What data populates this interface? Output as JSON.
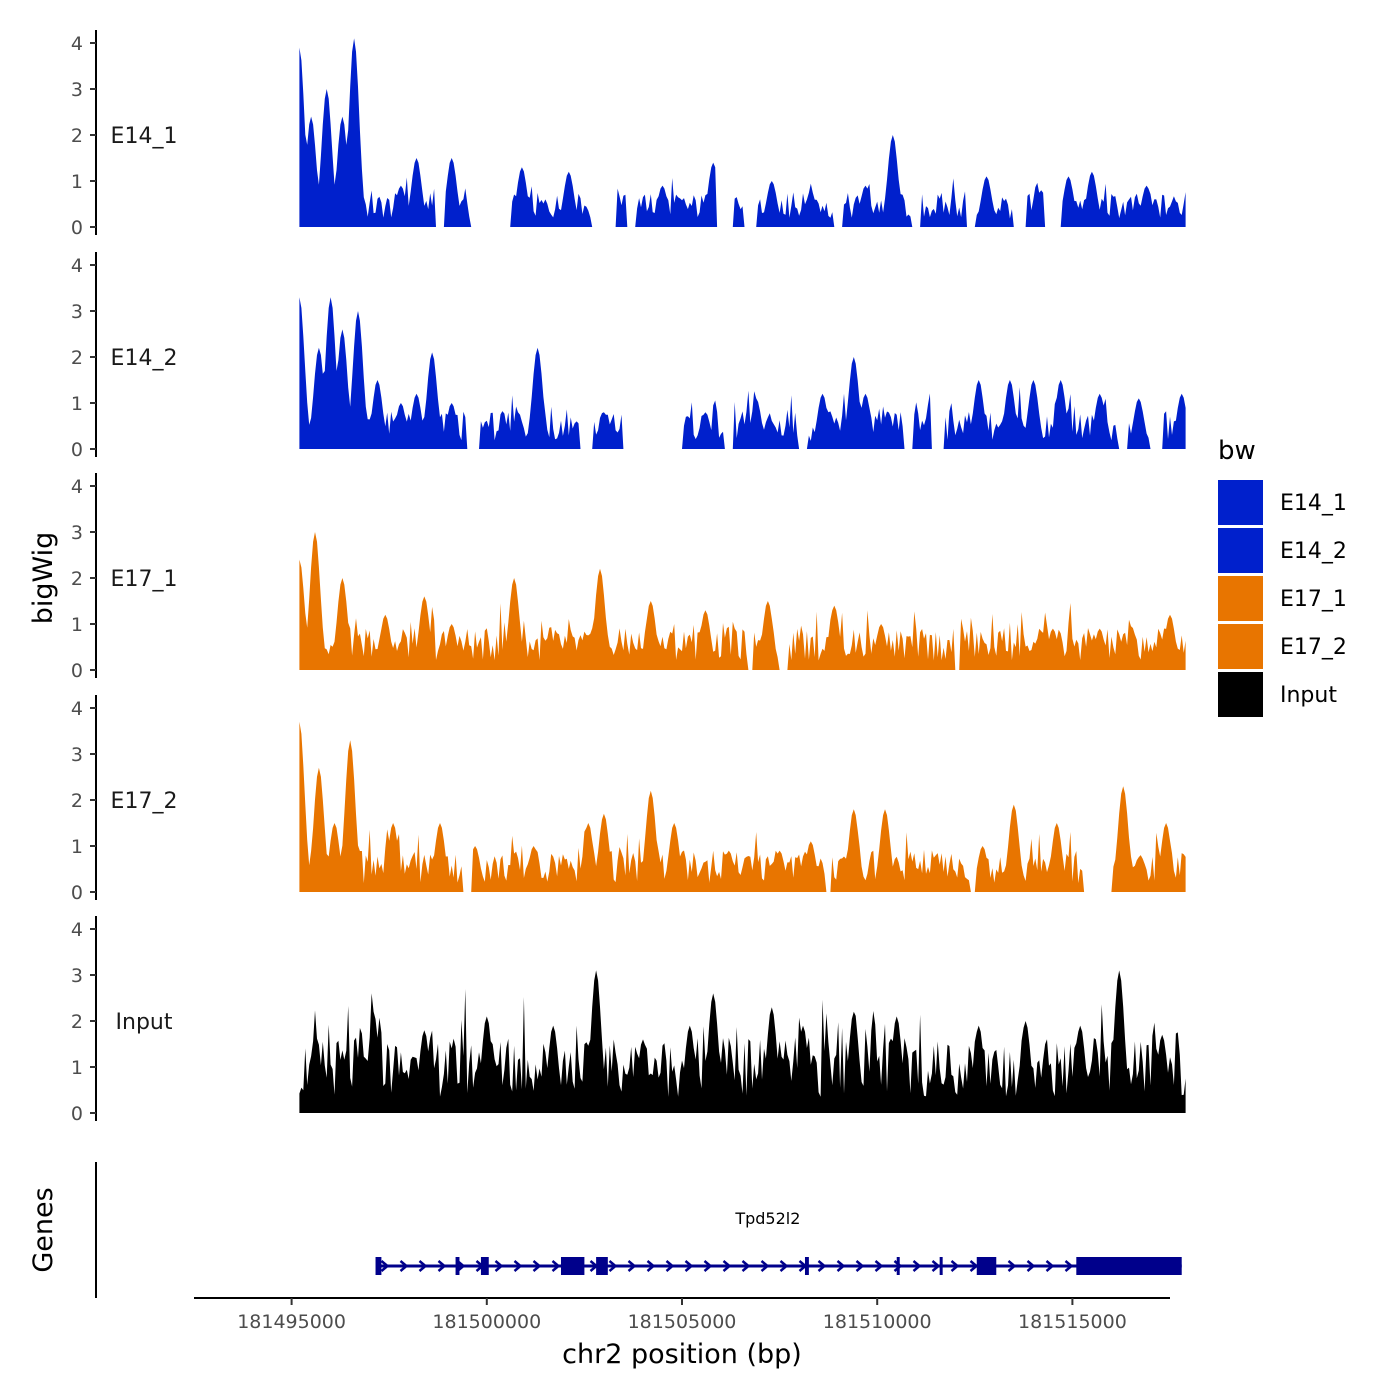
{
  "chart_data": {
    "type": "area",
    "title": "",
    "ylabel": "bigWig",
    "xlabel": "chr2 position (bp)",
    "genes_label": "Genes",
    "xlim": [
      181492500,
      181517500
    ],
    "ylim": [
      0,
      4
    ],
    "yticks": [
      "0",
      "1",
      "2",
      "3",
      "4"
    ],
    "xticks": [
      {
        "value": 181495000,
        "label": "181495000"
      },
      {
        "value": 181500000,
        "label": "181500000"
      },
      {
        "value": 181505000,
        "label": "181505000"
      },
      {
        "value": 181510000,
        "label": "181510000"
      },
      {
        "value": 181515000,
        "label": "181515000"
      }
    ],
    "region": [
      181495200,
      181517900
    ],
    "series": [
      {
        "name": "E14_1",
        "color": "#0020CC",
        "mean": 0.45,
        "peaks": [
          [
            181495200,
            3.9
          ],
          [
            181495500,
            2.4
          ],
          [
            181495900,
            3.0
          ],
          [
            181496300,
            2.4
          ],
          [
            181496600,
            4.1
          ],
          [
            181497800,
            0.9
          ],
          [
            181498200,
            1.5
          ],
          [
            181499100,
            1.5
          ],
          [
            181500900,
            1.3
          ],
          [
            181502100,
            1.2
          ],
          [
            181503300,
            0.9
          ],
          [
            181504500,
            0.9
          ],
          [
            181505800,
            1.4
          ],
          [
            181507300,
            1.0
          ],
          [
            181508300,
            0.8
          ],
          [
            181509700,
            0.9
          ],
          [
            181510400,
            2.0
          ],
          [
            181512800,
            1.1
          ],
          [
            181514200,
            0.8
          ],
          [
            181514900,
            1.1
          ],
          [
            181515500,
            1.2
          ],
          [
            181516900,
            0.9
          ],
          [
            181517600,
            0.6
          ]
        ],
        "gaps": [
          [
            181498700,
            181498900
          ],
          [
            181499600,
            181500600
          ],
          [
            181502700,
            181503300
          ],
          [
            181503600,
            181503800
          ],
          [
            181505900,
            181506300
          ],
          [
            181506600,
            181506900
          ],
          [
            181508900,
            181509100
          ],
          [
            181510900,
            181511100
          ],
          [
            181512300,
            181512500
          ],
          [
            181513500,
            181513800
          ],
          [
            181514300,
            181514700
          ]
        ]
      },
      {
        "name": "E14_2",
        "color": "#0020CC",
        "mean": 0.5,
        "peaks": [
          [
            181495200,
            3.3
          ],
          [
            181495700,
            2.2
          ],
          [
            181496000,
            3.3
          ],
          [
            181496300,
            2.6
          ],
          [
            181496700,
            3.0
          ],
          [
            181497200,
            1.5
          ],
          [
            181497800,
            1.0
          ],
          [
            181498200,
            1.2
          ],
          [
            181498600,
            2.1
          ],
          [
            181499100,
            1.0
          ],
          [
            181500800,
            0.8
          ],
          [
            181501300,
            2.2
          ],
          [
            181502300,
            0.6
          ],
          [
            181503000,
            0.8
          ],
          [
            181504300,
            0.7
          ],
          [
            181505600,
            0.8
          ],
          [
            181506900,
            1.1
          ],
          [
            181508600,
            1.2
          ],
          [
            181509400,
            2.0
          ],
          [
            181509700,
            1.2
          ],
          [
            181511400,
            1.3
          ],
          [
            181512600,
            1.5
          ],
          [
            181513400,
            1.5
          ],
          [
            181514000,
            1.5
          ],
          [
            181514700,
            1.5
          ],
          [
            181515700,
            1.2
          ],
          [
            181516700,
            1.1
          ],
          [
            181517800,
            1.2
          ]
        ],
        "gaps": [
          [
            181499500,
            181499800
          ],
          [
            181502400,
            181502700
          ],
          [
            181503500,
            181505000
          ],
          [
            181506100,
            181506300
          ],
          [
            181508000,
            181508200
          ],
          [
            181510700,
            181510900
          ],
          [
            181511400,
            181511700
          ],
          [
            181516200,
            181516400
          ],
          [
            181517000,
            181517300
          ]
        ]
      },
      {
        "name": "E17_1",
        "color": "#E87500",
        "mean": 0.55,
        "peaks": [
          [
            181495200,
            2.4
          ],
          [
            181495600,
            3.0
          ],
          [
            181496300,
            2.0
          ],
          [
            181497400,
            1.2
          ],
          [
            181498400,
            1.6
          ],
          [
            181499100,
            1.0
          ],
          [
            181500700,
            2.0
          ],
          [
            181502900,
            2.2
          ],
          [
            181504200,
            1.5
          ],
          [
            181505600,
            1.3
          ],
          [
            181507200,
            1.5
          ],
          [
            181508900,
            1.4
          ],
          [
            181510100,
            1.0
          ],
          [
            181512100,
            1.2
          ],
          [
            181514500,
            0.9
          ],
          [
            181515700,
            0.9
          ],
          [
            181517500,
            1.2
          ]
        ],
        "gaps": [
          [
            181506700,
            181506800
          ],
          [
            181507500,
            181507700
          ],
          [
            181512000,
            181512100
          ]
        ]
      },
      {
        "name": "E17_2",
        "color": "#E87500",
        "mean": 0.55,
        "peaks": [
          [
            181495200,
            3.7
          ],
          [
            181495700,
            2.7
          ],
          [
            181496100,
            1.5
          ],
          [
            181496500,
            3.3
          ],
          [
            181497600,
            1.5
          ],
          [
            181498800,
            1.5
          ],
          [
            181499700,
            1.0
          ],
          [
            181501200,
            1.0
          ],
          [
            181502600,
            1.5
          ],
          [
            181503000,
            1.7
          ],
          [
            181504200,
            2.2
          ],
          [
            181504800,
            1.5
          ],
          [
            181506200,
            0.9
          ],
          [
            181507500,
            0.9
          ],
          [
            181508300,
            1.1
          ],
          [
            181509400,
            1.8
          ],
          [
            181510200,
            1.8
          ],
          [
            181511500,
            0.8
          ],
          [
            181512700,
            1.0
          ],
          [
            181513500,
            1.9
          ],
          [
            181514600,
            1.5
          ],
          [
            181516300,
            2.3
          ],
          [
            181517400,
            1.5
          ]
        ],
        "gaps": [
          [
            181499400,
            181499600
          ],
          [
            181508700,
            181508800
          ],
          [
            181512400,
            181512500
          ],
          [
            181515300,
            181516000
          ]
        ]
      },
      {
        "name": "Input",
        "color": "#000000",
        "mean": 1.0,
        "peaks": [
          [
            181495600,
            1.6
          ],
          [
            181497100,
            2.2
          ],
          [
            181498400,
            1.8
          ],
          [
            181500000,
            2.1
          ],
          [
            181501700,
            1.9
          ],
          [
            181502800,
            3.1
          ],
          [
            181504000,
            1.6
          ],
          [
            181505200,
            1.9
          ],
          [
            181505800,
            2.6
          ],
          [
            181507300,
            2.3
          ],
          [
            181508100,
            1.9
          ],
          [
            181509400,
            2.2
          ],
          [
            181510500,
            2.1
          ],
          [
            181512600,
            1.9
          ],
          [
            181513800,
            2.0
          ],
          [
            181515200,
            1.9
          ],
          [
            181516200,
            3.1
          ],
          [
            181517300,
            1.7
          ]
        ],
        "gaps": []
      }
    ],
    "gene": {
      "name": "Tpd52l2",
      "color": "#00008B",
      "start": 181497200,
      "end": 181517800,
      "exons": [
        [
          181497150,
          181497300
        ],
        [
          181499200,
          181499300
        ],
        [
          181499850,
          181500050
        ],
        [
          181501900,
          181502500
        ],
        [
          181502800,
          181503100
        ],
        [
          181508150,
          181508250
        ],
        [
          181510500,
          181510520
        ],
        [
          181511600,
          181511640
        ],
        [
          181512550,
          181513050
        ],
        [
          181515100,
          181517800
        ]
      ]
    },
    "legend": {
      "title": "bw",
      "position": "right",
      "items": [
        {
          "label": "E14_1",
          "color": "#0020CC"
        },
        {
          "label": "E14_2",
          "color": "#0020CC"
        },
        {
          "label": "E17_1",
          "color": "#E87500"
        },
        {
          "label": "E17_2",
          "color": "#E87500"
        },
        {
          "label": "Input",
          "color": "#000000"
        }
      ]
    }
  }
}
